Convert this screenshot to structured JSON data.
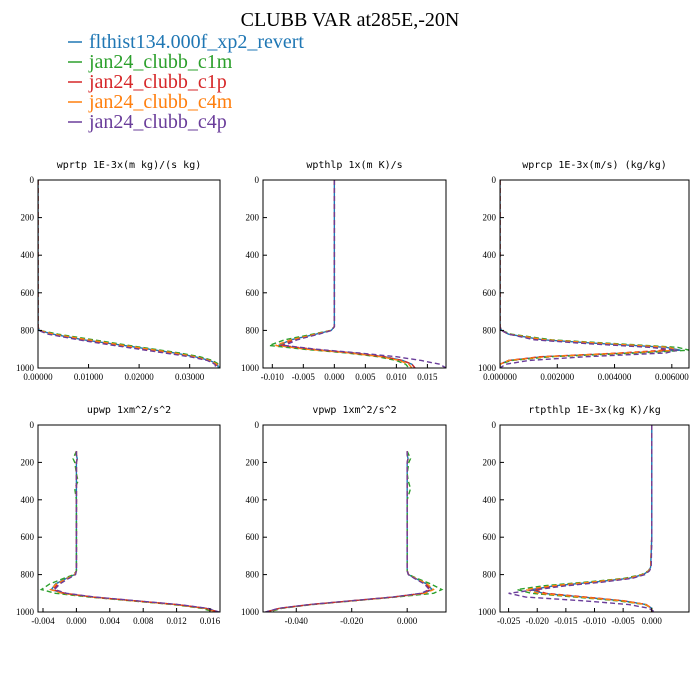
{
  "title": "CLUBB VAR at285E,-20N",
  "legend": [
    {
      "label": "flthist134.000f_xp2_revert",
      "color": "#1f77b4",
      "style": "solid"
    },
    {
      "label": "jan24_clubb_c1m",
      "color": "#2ca02c",
      "style": "dashed"
    },
    {
      "label": "jan24_clubb_c1p",
      "color": "#d62728",
      "style": "dashed"
    },
    {
      "label": "jan24_clubb_c4m",
      "color": "#ff7f0e",
      "style": "dashed"
    },
    {
      "label": "jan24_clubb_c4p",
      "color": "#6a3d9a",
      "style": "dashed"
    }
  ],
  "chart_data": [
    {
      "type": "line",
      "title": "wprtp  1E-3x(m kg)/(s kg)",
      "xlim": [
        0,
        0.036
      ],
      "ylim": [
        1000,
        0
      ],
      "xticks": [
        0,
        0.01,
        0.02,
        0.03
      ],
      "xticklabels": [
        "0.00000",
        "0.01000",
        "0.02000",
        "0.03000"
      ],
      "yticks": [
        0,
        200,
        400,
        600,
        800,
        1000
      ],
      "y": [
        0,
        200,
        400,
        600,
        780,
        800,
        820,
        850,
        880,
        900,
        920,
        940,
        960,
        980,
        1000
      ],
      "series": [
        {
          "values": [
            0,
            0,
            0,
            0,
            0,
            0.0002,
            0.003,
            0.009,
            0.017,
            0.022,
            0.027,
            0.031,
            0.034,
            0.0355,
            0.0357
          ]
        },
        {
          "values": [
            0,
            0,
            0,
            0,
            0,
            0.0003,
            0.004,
            0.011,
            0.018,
            0.023,
            0.028,
            0.032,
            0.0345,
            0.0358,
            0.036
          ]
        },
        {
          "values": [
            0,
            0,
            0,
            0,
            0,
            0.0002,
            0.003,
            0.009,
            0.016,
            0.021,
            0.026,
            0.031,
            0.0338,
            0.0352,
            0.0355
          ]
        },
        {
          "values": [
            0,
            0,
            0,
            0,
            0,
            0.0002,
            0.003,
            0.01,
            0.017,
            0.022,
            0.027,
            0.031,
            0.034,
            0.0354,
            0.0356
          ]
        },
        {
          "values": [
            0,
            0,
            0,
            0,
            0,
            0.0001,
            0.002,
            0.008,
            0.015,
            0.02,
            0.025,
            0.03,
            0.0335,
            0.035,
            0.0352
          ]
        }
      ]
    },
    {
      "type": "line",
      "title": "wpthlp  1x(m K)/s",
      "xlim": [
        -0.0115,
        0.018
      ],
      "ylim": [
        1000,
        0
      ],
      "xticks": [
        -0.01,
        -0.005,
        0,
        0.005,
        0.01,
        0.015
      ],
      "xticklabels": [
        "-0.010",
        "-0.005",
        "0.000",
        "0.005",
        "0.010",
        "0.015"
      ],
      "yticks": [
        0,
        200,
        400,
        600,
        800,
        1000
      ],
      "y": [
        0,
        200,
        400,
        600,
        780,
        800,
        820,
        850,
        880,
        900,
        920,
        940,
        960,
        980,
        1000
      ],
      "series": [
        {
          "values": [
            0,
            0,
            0,
            0,
            0,
            -0.0005,
            -0.003,
            -0.007,
            -0.009,
            -0.004,
            0.003,
            0.008,
            0.011,
            0.0125,
            0.013
          ]
        },
        {
          "values": [
            0,
            0,
            0,
            0,
            0,
            -0.0006,
            -0.0035,
            -0.008,
            -0.0105,
            -0.005,
            0.002,
            0.007,
            0.01,
            0.0115,
            0.012
          ]
        },
        {
          "values": [
            0,
            0,
            0,
            0,
            0,
            -0.0005,
            -0.003,
            -0.0065,
            -0.0085,
            -0.0035,
            0.003,
            0.008,
            0.011,
            0.0125,
            0.013
          ]
        },
        {
          "values": [
            0,
            0,
            0,
            0,
            0,
            -0.0005,
            -0.003,
            -0.007,
            -0.0095,
            -0.0045,
            0.0025,
            0.0075,
            0.0105,
            0.012,
            0.0125
          ]
        },
        {
          "values": [
            0,
            0,
            0,
            0,
            0,
            -0.0004,
            -0.0025,
            -0.006,
            -0.008,
            -0.003,
            0.004,
            0.01,
            0.014,
            0.017,
            0.018
          ]
        }
      ]
    },
    {
      "type": "line",
      "title": "wprcp  1E-3x(m/s) (kg/kg)",
      "xlim": [
        0,
        0.0066
      ],
      "ylim": [
        1000,
        0
      ],
      "xticks": [
        0,
        0.002,
        0.004,
        0.006
      ],
      "xticklabels": [
        "0.000000",
        "0.002000",
        "0.004000",
        "0.006000"
      ],
      "yticks": [
        0,
        200,
        400,
        600,
        800,
        1000
      ],
      "y": [
        0,
        200,
        400,
        600,
        780,
        800,
        820,
        850,
        870,
        890,
        905,
        920,
        940,
        960,
        980,
        1000
      ],
      "series": [
        {
          "values": [
            0,
            0,
            0,
            0,
            0,
            5e-05,
            0.0003,
            0.0015,
            0.0035,
            0.0058,
            0.0063,
            0.0045,
            0.0015,
            0.0003,
            0,
            0
          ]
        },
        {
          "values": [
            0,
            0,
            0,
            0,
            0,
            5e-05,
            0.0004,
            0.0018,
            0.004,
            0.0062,
            0.0066,
            0.0048,
            0.0018,
            0.0004,
            0,
            0
          ]
        },
        {
          "values": [
            0,
            0,
            0,
            0,
            0,
            4e-05,
            0.0003,
            0.0014,
            0.0033,
            0.0054,
            0.0058,
            0.0042,
            0.0014,
            0.0003,
            0,
            0
          ]
        },
        {
          "values": [
            0,
            0,
            0,
            0,
            0,
            5e-05,
            0.0003,
            0.0016,
            0.0037,
            0.0059,
            0.0062,
            0.0044,
            0.0016,
            0.0003,
            0,
            0
          ]
        },
        {
          "values": [
            0,
            0,
            0,
            0,
            0,
            5e-05,
            0.0003,
            0.0012,
            0.003,
            0.0052,
            0.0062,
            0.0058,
            0.003,
            0.001,
            0.0002,
            0
          ]
        }
      ]
    },
    {
      "type": "line",
      "title": "upwp  1xm^2/s^2",
      "xlim": [
        -0.0046,
        0.0172
      ],
      "ylim": [
        1000,
        0
      ],
      "xticks": [
        -0.004,
        0,
        0.004,
        0.008,
        0.012,
        0.016
      ],
      "xticklabels": [
        "-0.004",
        "0.000",
        "0.004",
        "0.008",
        "0.012",
        "0.016"
      ],
      "yticks": [
        0,
        200,
        400,
        600,
        800,
        1000
      ],
      "y": [
        140,
        160,
        180,
        200,
        260,
        300,
        340,
        400,
        600,
        780,
        800,
        820,
        850,
        880,
        900,
        920,
        940,
        960,
        980,
        1000
      ],
      "series": [
        {
          "values": [
            0,
            0,
            0.0001,
            0,
            0,
            0,
            0,
            0,
            0,
            0,
            -0.0002,
            -0.0012,
            -0.0025,
            -0.003,
            -0.0015,
            0.002,
            0.007,
            0.012,
            0.0155,
            0.017
          ]
        },
        {
          "values": [
            0,
            -0.0002,
            -0.0004,
            -0.0002,
            0,
            0.0002,
            -0.0002,
            0,
            0,
            0,
            -0.0003,
            -0.0015,
            -0.0032,
            -0.0042,
            -0.0025,
            0.0015,
            0.0065,
            0.0115,
            0.015,
            0.0165
          ]
        },
        {
          "values": [
            0,
            0,
            0.0001,
            0,
            0,
            0,
            0,
            0,
            0,
            0,
            -0.0002,
            -0.001,
            -0.0022,
            -0.0028,
            -0.0014,
            0.002,
            0.007,
            0.012,
            0.0155,
            0.017
          ]
        },
        {
          "values": [
            0,
            0,
            0.0001,
            0,
            0,
            0,
            0,
            0,
            0,
            0,
            -0.0002,
            -0.0011,
            -0.0024,
            -0.0031,
            -0.0017,
            0.0018,
            0.0068,
            0.0118,
            0.0153,
            0.0168
          ]
        },
        {
          "values": [
            0,
            0,
            0.0001,
            0,
            0,
            0,
            0,
            0,
            0,
            0,
            -0.0001,
            -0.0009,
            -0.002,
            -0.0026,
            -0.0012,
            0.0022,
            0.0072,
            0.0122,
            0.0157,
            0.0171
          ]
        }
      ]
    },
    {
      "type": "line",
      "title": "vpwp  1xm^2/s^2",
      "xlim": [
        -0.052,
        0.014
      ],
      "ylim": [
        1000,
        0
      ],
      "xticks": [
        -0.04,
        -0.02,
        0
      ],
      "xticklabels": [
        "-0.040",
        "-0.020",
        "0.000"
      ],
      "yticks": [
        0,
        200,
        400,
        600,
        800,
        1000
      ],
      "y": [
        140,
        160,
        180,
        200,
        260,
        300,
        340,
        400,
        600,
        780,
        800,
        820,
        850,
        880,
        900,
        920,
        940,
        960,
        980,
        1000
      ],
      "series": [
        {
          "values": [
            0,
            0,
            0.0003,
            0,
            0,
            0,
            0,
            0,
            0,
            0,
            0.0005,
            0.003,
            0.007,
            0.009,
            0.006,
            -0.005,
            -0.02,
            -0.035,
            -0.046,
            -0.051
          ]
        },
        {
          "values": [
            0,
            0.0006,
            0.0012,
            0.0006,
            0,
            0.0004,
            0.0012,
            0,
            0,
            0,
            0.0006,
            0.0035,
            0.0085,
            0.0125,
            0.0095,
            -0.004,
            -0.019,
            -0.034,
            -0.045,
            -0.05
          ]
        },
        {
          "values": [
            0,
            0,
            0.0003,
            0,
            0,
            0,
            0,
            0,
            0,
            0,
            0.0005,
            0.0028,
            0.0065,
            0.0085,
            0.0055,
            -0.005,
            -0.02,
            -0.035,
            -0.046,
            -0.051
          ]
        },
        {
          "values": [
            0,
            0,
            0.0004,
            0,
            0,
            0,
            0,
            0,
            0,
            0,
            0.0005,
            0.003,
            0.0072,
            0.0095,
            0.0065,
            -0.0048,
            -0.0198,
            -0.0348,
            -0.0458,
            -0.0508
          ]
        },
        {
          "values": [
            0,
            0,
            0.0003,
            0,
            0,
            0,
            0,
            0,
            0,
            0,
            0.0004,
            0.0026,
            0.0062,
            0.008,
            0.005,
            -0.0052,
            -0.0202,
            -0.0352,
            -0.0462,
            -0.0512
          ]
        }
      ]
    },
    {
      "type": "line",
      "title": "rtpthlp  1E-3x(kg K)/kg",
      "xlim": [
        -0.0265,
        0.0065
      ],
      "ylim": [
        1000,
        0
      ],
      "xticks": [
        -0.025,
        -0.02,
        -0.015,
        -0.01,
        -0.005,
        0
      ],
      "xticklabels": [
        "-0.025",
        "-0.020",
        "-0.015",
        "-0.010",
        "-0.005",
        "0.000"
      ],
      "yticks": [
        0,
        200,
        400,
        600,
        800,
        1000
      ],
      "y": [
        0,
        200,
        400,
        600,
        760,
        780,
        800,
        820,
        840,
        860,
        880,
        900,
        920,
        940,
        960,
        980,
        1000
      ],
      "series": [
        {
          "values": [
            0,
            0,
            0,
            0,
            -0.0002,
            -0.0005,
            -0.0015,
            -0.004,
            -0.01,
            -0.017,
            -0.021,
            -0.019,
            -0.012,
            -0.005,
            -0.001,
            0,
            0
          ]
        },
        {
          "values": [
            0,
            0,
            0,
            0,
            -0.0002,
            -0.0006,
            -0.0018,
            -0.0048,
            -0.0115,
            -0.019,
            -0.0235,
            -0.021,
            -0.0135,
            -0.006,
            -0.0012,
            0,
            0
          ]
        },
        {
          "values": [
            0,
            0,
            0,
            0,
            -0.0002,
            -0.0005,
            -0.0014,
            -0.0038,
            -0.0095,
            -0.0165,
            -0.0205,
            -0.0185,
            -0.0115,
            -0.0048,
            -0.001,
            0,
            0
          ]
        },
        {
          "values": [
            0,
            0,
            0,
            0,
            -0.0002,
            -0.0005,
            -0.0016,
            -0.0042,
            -0.0105,
            -0.0175,
            -0.022,
            -0.0198,
            -0.0125,
            -0.0052,
            -0.0011,
            0,
            0
          ]
        },
        {
          "values": [
            0,
            0,
            0,
            0,
            -0.0001,
            -0.0004,
            -0.0012,
            -0.0034,
            -0.0085,
            -0.015,
            -0.02,
            -0.025,
            -0.022,
            -0.012,
            -0.004,
            -0.0005,
            0.0005
          ]
        }
      ]
    }
  ]
}
